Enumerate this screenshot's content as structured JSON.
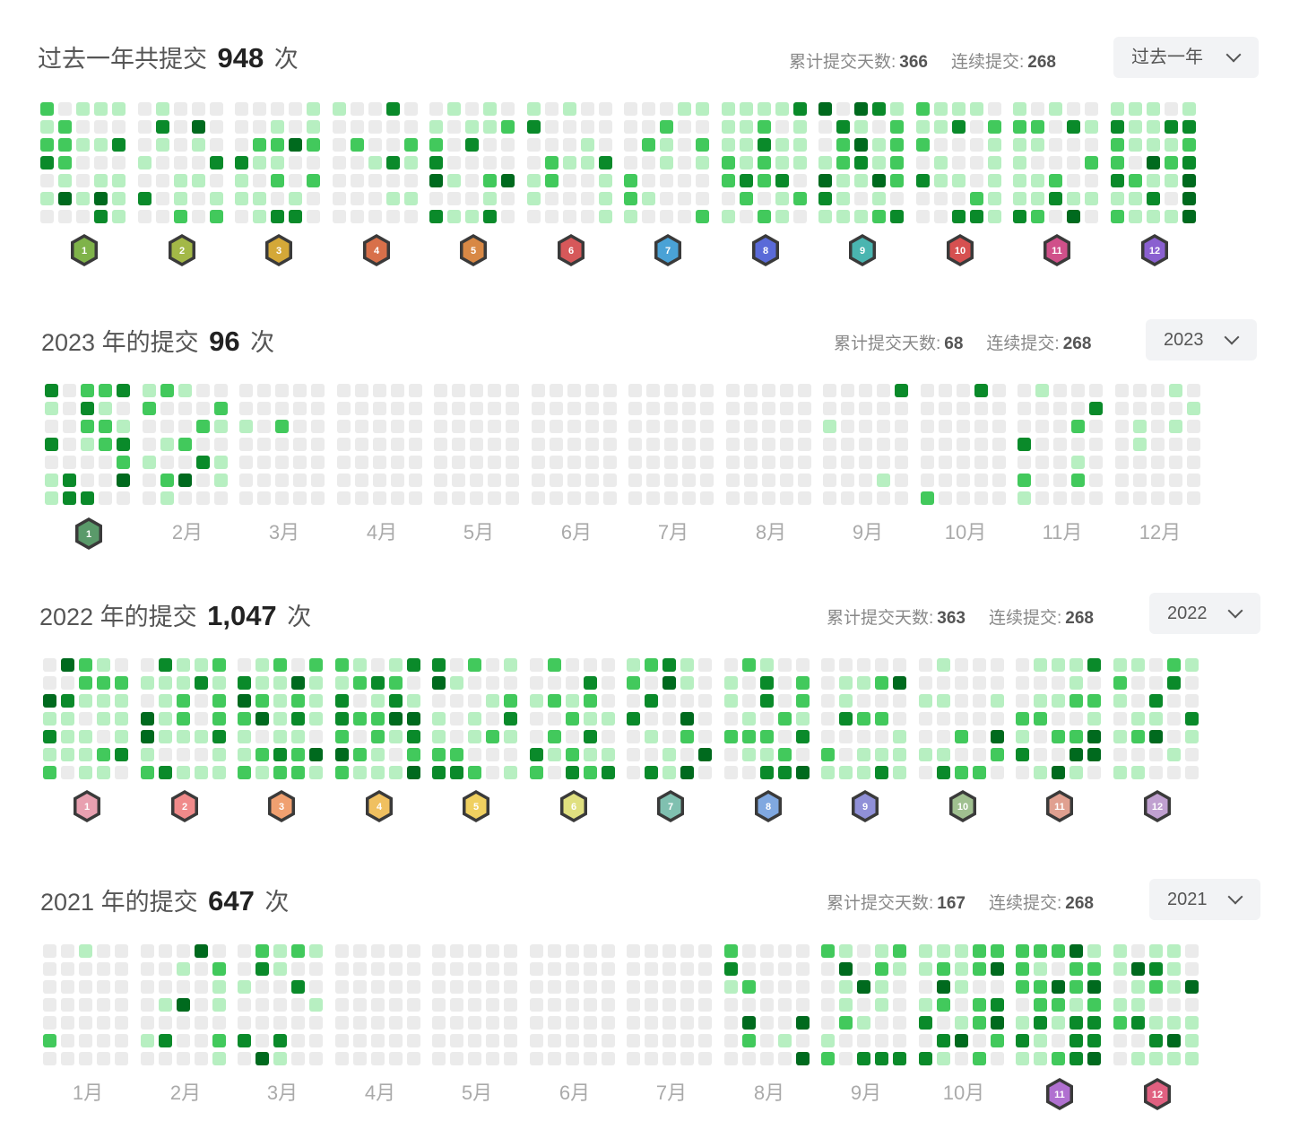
{
  "sections": [
    {
      "id": "past-year",
      "title_prefix": "过去一年共提交",
      "count": "948",
      "title_suffix": "次",
      "stats_days_label": "累计提交天数:",
      "stats_days": "366",
      "stats_streak_label": "连续提交:",
      "stats_streak": "268",
      "select_value": "过去一年",
      "month_labels": [],
      "badges": [
        "1",
        "2",
        "3",
        "4",
        "5",
        "6",
        "7",
        "8",
        "9",
        "10",
        "11",
        "12"
      ],
      "badge_colors": [
        "#7fb34a",
        "#a3b847",
        "#d4a838",
        "#d8704a",
        "#d88845",
        "#d6585a",
        "#4aa2d6",
        "#5a6ad8",
        "#4ab5b0",
        "#d65050",
        "#d0508a",
        "#8a60d0"
      ]
    },
    {
      "id": "y2023",
      "title_prefix": "2023 年的提交",
      "count": "96",
      "title_suffix": "次",
      "stats_days_label": "累计提交天数:",
      "stats_days": "68",
      "stats_streak_label": "连续提交:",
      "stats_streak": "268",
      "select_value": "2023",
      "month_labels": [
        "",
        "2月",
        "3月",
        "4月",
        "5月",
        "6月",
        "7月",
        "8月",
        "9月",
        "10月",
        "11月",
        "12月"
      ],
      "badges": [
        "1"
      ],
      "badge_colors": [
        "#5a9a6a"
      ]
    },
    {
      "id": "y2022",
      "title_prefix": "2022 年的提交",
      "count": "1,047",
      "title_suffix": "次",
      "stats_days_label": "累计提交天数:",
      "stats_days": "363",
      "stats_streak_label": "连续提交:",
      "stats_streak": "268",
      "select_value": "2022",
      "month_labels": [],
      "badges": [
        "1",
        "2",
        "3",
        "4",
        "5",
        "6",
        "7",
        "8",
        "9",
        "10",
        "11",
        "12"
      ],
      "badge_colors": [
        "#e8a0b0",
        "#f08a8a",
        "#f0a070",
        "#f0c060",
        "#f0d060",
        "#e0e080",
        "#80c0b0",
        "#80a8e0",
        "#9090d8",
        "#a0c090",
        "#e0a090",
        "#c0a0d0"
      ]
    },
    {
      "id": "y2021",
      "title_prefix": "2021 年的提交",
      "count": "647",
      "title_suffix": "次",
      "stats_days_label": "累计提交天数:",
      "stats_days": "167",
      "stats_streak_label": "连续提交:",
      "stats_streak": "268",
      "select_value": "2021",
      "month_labels": [
        "1月",
        "2月",
        "3月",
        "4月",
        "5月",
        "6月",
        "7月",
        "8月",
        "9月",
        "10月",
        "",
        ""
      ],
      "badges": [
        "11",
        "12"
      ],
      "badge_colors": [
        "#b070d0",
        "#e06080"
      ]
    }
  ],
  "colors": {
    "empty": "#ebebeb",
    "level1": "#b7efc1",
    "level2": "#42c95c",
    "level3": "#0a8a2a",
    "level4": "#006a1e"
  },
  "icons": {
    "dropdown": "chevron-down-icon",
    "badge": "month-badge-icon"
  }
}
